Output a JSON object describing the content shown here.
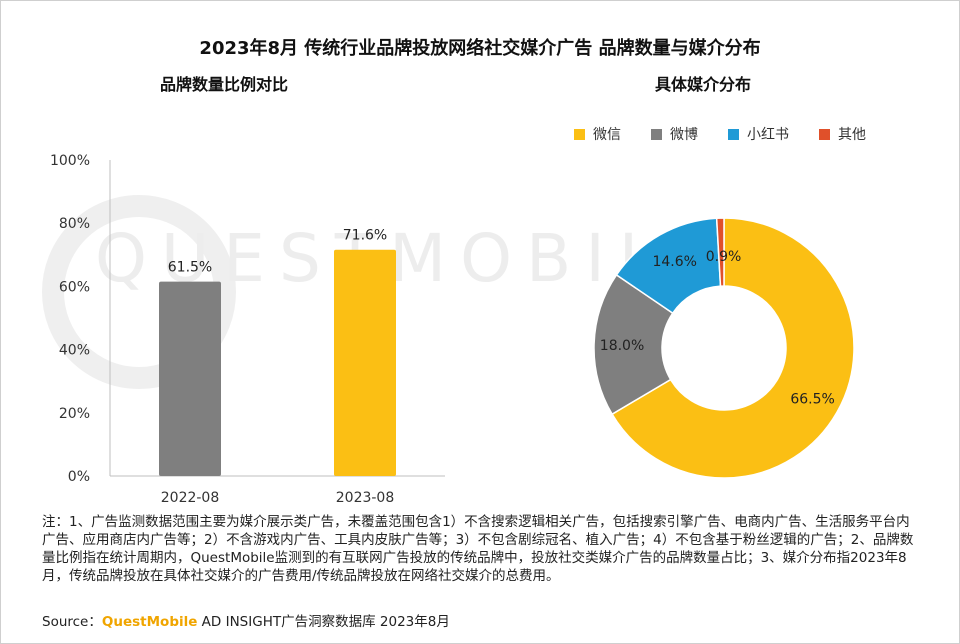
{
  "title": "2023年8月 传统行业品牌投放网络社交媒介广告 品牌数量与媒介分布",
  "subtitle_left": "品牌数量比例对比",
  "subtitle_right": "具体媒介分布",
  "watermark": "QUESTMOBILE",
  "colors": {
    "gray": "#7f7f7f",
    "yellow": "#fbbf14",
    "blue": "#1f9ad6",
    "red": "#e0502a",
    "axis": "#bfbfbf"
  },
  "chart_data": [
    {
      "type": "bar",
      "title": "品牌数量比例对比",
      "categories": [
        "2022-08",
        "2023-08"
      ],
      "values": [
        61.5,
        71.6
      ],
      "value_labels": [
        "61.5%",
        "71.6%"
      ],
      "bar_colors": [
        "#7f7f7f",
        "#fbbf14"
      ],
      "ylim": [
        0,
        100
      ],
      "yticks": [
        "0%",
        "20%",
        "40%",
        "60%",
        "80%",
        "100%"
      ],
      "grid": false
    },
    {
      "type": "pie",
      "title": "具体媒介分布",
      "labels": [
        "微信",
        "微博",
        "小红书",
        "其他"
      ],
      "values": [
        66.5,
        18.0,
        14.6,
        0.9
      ],
      "value_labels": [
        "66.5%",
        "18.0%",
        "14.6%",
        "0.9%"
      ],
      "colors": [
        "#fbbf14",
        "#7f7f7f",
        "#1f9ad6",
        "#e0502a"
      ],
      "legend_position": "top",
      "donut": true
    }
  ],
  "note": "注：1、广告监测数据范围主要为媒介展示类广告，未覆盖范围包含1）不含搜索逻辑相关广告，包括搜索引擎广告、电商内广告、生活服务平台内广告、应用商店内广告等；2）不含游戏内广告、工具内皮肤广告等；3）不包含剧综冠名、植入广告；4）不包含基于粉丝逻辑的广告；2、品牌数量比例指在统计周期内，QuestMobile监测到的有互联网广告投放的传统品牌中，投放社交类媒介广告的品牌数量占比；3、媒介分布指2023年8月，传统品牌投放在具体社交媒介的广告费用/传统品牌投放在网络社交媒介的总费用。",
  "source": {
    "prefix": "Source：",
    "brand": "QuestMobile",
    "suffix": " AD INSIGHT广告洞察数据库 2023年8月"
  }
}
